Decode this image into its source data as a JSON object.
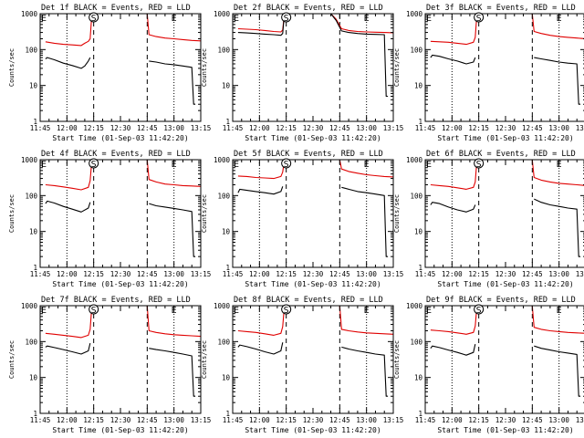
{
  "figure": {
    "xlabel": "Start Time (01-Sep-03 11:42:20)",
    "ylabel": "Counts/sec",
    "x_ticks": [
      "11:45",
      "12:00",
      "12:15",
      "12:30",
      "12:45",
      "13:00",
      "13:15"
    ],
    "y_ticks": [
      "1",
      "10",
      "100",
      "1000"
    ]
  },
  "chart_data": [
    {
      "type": "line",
      "title": "Det 1f BLACK = Events, RED = LLD",
      "xlabel": "Start Time (01-Sep-03 11:42:20)",
      "ylabel": "Counts/sec",
      "ylog": true,
      "ylim": [
        1,
        1000
      ],
      "x_ticks": [
        "11:45",
        "12:00",
        "12:15",
        "12:30",
        "12:45",
        "13:00",
        "13:15"
      ],
      "markers": [
        "E",
        "S",
        "E"
      ],
      "series": [
        {
          "color": "#e00000",
          "x": [
            "11:48",
            "11:53",
            "11:58",
            "12:03",
            "12:08",
            "12:10",
            "12:12",
            "12:13",
            "12:14",
            "12:45",
            "12:46",
            "12:50",
            "12:55",
            "13:00",
            "13:05",
            "13:10",
            "13:15"
          ],
          "y": [
            165,
            150,
            140,
            135,
            130,
            150,
            170,
            200,
            1000,
            1000,
            260,
            230,
            210,
            200,
            190,
            180,
            175
          ]
        },
        {
          "color": "#000000",
          "x": [
            "11:48",
            "11:49",
            "11:53",
            "11:58",
            "12:03",
            "12:08",
            "12:10",
            "12:12",
            "12:13",
            "12:14",
            "12:45",
            "12:46",
            "12:50",
            "12:55",
            "13:00",
            "13:05",
            "13:10",
            "13:11",
            "13:12"
          ],
          "y": [
            55,
            60,
            52,
            42,
            36,
            30,
            35,
            48,
            60,
            null,
            null,
            48,
            45,
            40,
            38,
            35,
            32,
            3,
            3
          ]
        }
      ]
    },
    {
      "type": "line",
      "title": "Det 2f BLACK = Events, RED = LLD",
      "xlabel": "Start Time (01-Sep-03 11:42:20)",
      "ylabel": "Counts/sec",
      "ylog": true,
      "ylim": [
        1,
        1000
      ],
      "x_ticks": [
        "11:45",
        "12:00",
        "12:15",
        "12:30",
        "12:45",
        "13:00",
        "13:15"
      ],
      "markers": [
        "E",
        "S",
        "E"
      ],
      "series": [
        {
          "color": "#e00000",
          "x": [
            "11:48",
            "11:53",
            "11:58",
            "12:03",
            "12:08",
            "12:12",
            "12:13",
            "12:14",
            "12:40",
            "12:43",
            "12:46",
            "12:50",
            "12:55",
            "13:00",
            "13:05",
            "13:10",
            "13:15"
          ],
          "y": [
            380,
            370,
            360,
            340,
            320,
            310,
            350,
            1000,
            1000,
            700,
            380,
            340,
            320,
            310,
            305,
            300,
            295
          ]
        },
        {
          "color": "#000000",
          "x": [
            "11:48",
            "11:53",
            "11:58",
            "12:03",
            "12:08",
            "12:12",
            "12:13",
            "12:14",
            "12:40",
            "12:43",
            "12:46",
            "12:50",
            "12:55",
            "13:00",
            "13:05",
            "13:10",
            "13:11",
            "13:12"
          ],
          "y": [
            300,
            290,
            280,
            270,
            260,
            250,
            280,
            1000,
            1000,
            650,
            330,
            300,
            280,
            270,
            265,
            260,
            5,
            5
          ]
        }
      ]
    },
    {
      "type": "line",
      "title": "Det 3f BLACK = Events, RED = LLD",
      "xlabel": "Start Time (01-Sep-03 11:42:20)",
      "ylabel": "Counts/sec",
      "ylog": true,
      "ylim": [
        1,
        1000
      ],
      "x_ticks": [
        "11:45",
        "12:00",
        "12:15",
        "12:30",
        "12:45",
        "13:00",
        "13:15"
      ],
      "markers": [
        "E",
        "S",
        "E"
      ],
      "series": [
        {
          "color": "#e00000",
          "x": [
            "11:48",
            "11:53",
            "11:58",
            "12:03",
            "12:08",
            "12:12",
            "12:13",
            "12:14",
            "12:45",
            "12:46",
            "12:50",
            "12:55",
            "13:00",
            "13:05",
            "13:10",
            "13:15"
          ],
          "y": [
            170,
            165,
            160,
            150,
            140,
            160,
            220,
            1000,
            1000,
            320,
            280,
            250,
            230,
            220,
            210,
            200
          ]
        },
        {
          "color": "#000000",
          "x": [
            "11:48",
            "11:49",
            "11:53",
            "11:58",
            "12:03",
            "12:08",
            "12:12",
            "12:13",
            "12:14",
            "12:45",
            "12:46",
            "12:50",
            "12:55",
            "13:00",
            "13:05",
            "13:10",
            "13:11",
            "13:12"
          ],
          "y": [
            60,
            70,
            65,
            55,
            48,
            40,
            45,
            60,
            null,
            null,
            60,
            55,
            50,
            45,
            42,
            40,
            3,
            3
          ]
        }
      ]
    },
    {
      "type": "line",
      "title": "Det 4f BLACK = Events, RED = LLD",
      "xlabel": "Start Time (01-Sep-03 11:42:20)",
      "ylabel": "Counts/sec",
      "ylog": true,
      "ylim": [
        1,
        1000
      ],
      "x_ticks": [
        "11:45",
        "12:00",
        "12:15",
        "12:30",
        "12:45",
        "13:00",
        "13:15"
      ],
      "markers": [
        "E",
        "S",
        "E"
      ],
      "series": [
        {
          "color": "#e00000",
          "x": [
            "11:48",
            "11:53",
            "11:58",
            "12:03",
            "12:08",
            "12:12",
            "12:13",
            "12:14",
            "12:45",
            "12:46",
            "12:50",
            "12:55",
            "13:00",
            "13:05",
            "13:10",
            "13:15"
          ],
          "y": [
            200,
            190,
            175,
            160,
            145,
            170,
            260,
            1000,
            1000,
            280,
            240,
            210,
            200,
            190,
            185,
            180
          ]
        },
        {
          "color": "#000000",
          "x": [
            "11:48",
            "11:49",
            "11:53",
            "11:58",
            "12:03",
            "12:08",
            "12:12",
            "12:13",
            "12:14",
            "12:45",
            "12:46",
            "12:50",
            "12:55",
            "13:00",
            "13:05",
            "13:10",
            "13:11",
            "13:12"
          ],
          "y": [
            60,
            70,
            62,
            50,
            42,
            35,
            45,
            65,
            null,
            null,
            60,
            52,
            48,
            44,
            40,
            36,
            2,
            2
          ]
        }
      ]
    },
    {
      "type": "line",
      "title": "Det 5f BLACK = Events, RED = LLD",
      "xlabel": "Start Time (01-Sep-03 11:42:20)",
      "ylabel": "Counts/sec",
      "ylog": true,
      "ylim": [
        1,
        1000
      ],
      "x_ticks": [
        "11:45",
        "12:00",
        "12:15",
        "12:30",
        "12:45",
        "13:00",
        "13:15"
      ],
      "markers": [
        "E",
        "S",
        "E"
      ],
      "series": [
        {
          "color": "#e00000",
          "x": [
            "11:48",
            "11:53",
            "11:58",
            "12:03",
            "12:08",
            "12:12",
            "12:13",
            "12:14",
            "12:45",
            "12:46",
            "12:50",
            "12:55",
            "13:00",
            "13:05",
            "13:10",
            "13:15"
          ],
          "y": [
            350,
            340,
            320,
            310,
            300,
            340,
            450,
            1000,
            1000,
            550,
            470,
            420,
            380,
            360,
            340,
            330
          ]
        },
        {
          "color": "#000000",
          "x": [
            "11:48",
            "11:49",
            "11:53",
            "11:58",
            "12:03",
            "12:08",
            "12:12",
            "12:13",
            "12:14",
            "12:45",
            "12:46",
            "12:50",
            "12:55",
            "13:00",
            "13:05",
            "13:10",
            "13:11",
            "13:12"
          ],
          "y": [
            120,
            150,
            140,
            130,
            120,
            110,
            130,
            180,
            null,
            null,
            170,
            150,
            130,
            120,
            110,
            100,
            2,
            2
          ]
        }
      ]
    },
    {
      "type": "line",
      "title": "Det 6f BLACK = Events, RED = LLD",
      "xlabel": "Start Time (01-Sep-03 11:42:20)",
      "ylabel": "Counts/sec",
      "ylog": true,
      "ylim": [
        1,
        1000
      ],
      "x_ticks": [
        "11:45",
        "12:00",
        "12:15",
        "12:30",
        "12:45",
        "13:00",
        "13:15"
      ],
      "markers": [
        "E",
        "S",
        "E"
      ],
      "series": [
        {
          "color": "#e00000",
          "x": [
            "11:48",
            "11:53",
            "11:58",
            "12:03",
            "12:08",
            "12:12",
            "12:13",
            "12:14",
            "12:45",
            "12:46",
            "12:50",
            "12:55",
            "13:00",
            "13:05",
            "13:10",
            "13:15"
          ],
          "y": [
            200,
            190,
            180,
            165,
            150,
            170,
            240,
            1000,
            1000,
            320,
            270,
            240,
            220,
            210,
            200,
            190
          ]
        },
        {
          "color": "#000000",
          "x": [
            "11:48",
            "11:49",
            "11:53",
            "11:58",
            "12:03",
            "12:08",
            "12:12",
            "12:13",
            "12:14",
            "12:45",
            "12:46",
            "12:50",
            "12:55",
            "13:00",
            "13:05",
            "13:10",
            "13:11",
            "13:12"
          ],
          "y": [
            55,
            65,
            60,
            48,
            40,
            35,
            42,
            55,
            null,
            null,
            80,
            65,
            55,
            50,
            45,
            42,
            2,
            2
          ]
        }
      ]
    },
    {
      "type": "line",
      "title": "Det 7f BLACK = Events, RED = LLD",
      "xlabel": "Start Time (01-Sep-03 11:42:20)",
      "ylabel": "Counts/sec",
      "ylog": true,
      "ylim": [
        1,
        1000
      ],
      "x_ticks": [
        "11:45",
        "12:00",
        "12:15",
        "12:30",
        "12:45",
        "13:00",
        "13:15"
      ],
      "markers": [
        "E",
        "S",
        "E"
      ],
      "series": [
        {
          "color": "#e00000",
          "x": [
            "11:48",
            "11:53",
            "11:58",
            "12:03",
            "12:08",
            "12:12",
            "12:13",
            "12:14",
            "12:45",
            "12:46",
            "12:50",
            "12:55",
            "13:00",
            "13:05",
            "13:10",
            "13:15"
          ],
          "y": [
            170,
            160,
            150,
            140,
            130,
            150,
            220,
            1000,
            1000,
            200,
            180,
            165,
            155,
            150,
            145,
            140
          ]
        },
        {
          "color": "#000000",
          "x": [
            "11:48",
            "11:49",
            "11:53",
            "11:58",
            "12:03",
            "12:08",
            "12:12",
            "12:13",
            "12:14",
            "12:45",
            "12:46",
            "12:50",
            "12:55",
            "13:00",
            "13:05",
            "13:10",
            "13:11",
            "13:12"
          ],
          "y": [
            70,
            75,
            68,
            60,
            52,
            45,
            55,
            90,
            null,
            null,
            65,
            60,
            55,
            50,
            45,
            40,
            3,
            3
          ]
        }
      ]
    },
    {
      "type": "line",
      "title": "Det 8f BLACK = Events, RED = LLD",
      "xlabel": "Start Time (01-Sep-03 11:42:20)",
      "ylabel": "Counts/sec",
      "ylog": true,
      "ylim": [
        1,
        1000
      ],
      "x_ticks": [
        "11:45",
        "12:00",
        "12:15",
        "12:30",
        "12:45",
        "13:00",
        "13:15"
      ],
      "markers": [
        "E",
        "S",
        "E"
      ],
      "series": [
        {
          "color": "#e00000",
          "x": [
            "11:48",
            "11:53",
            "11:58",
            "12:03",
            "12:08",
            "12:12",
            "12:13",
            "12:14",
            "12:45",
            "12:46",
            "12:50",
            "12:55",
            "13:00",
            "13:05",
            "13:10",
            "13:15"
          ],
          "y": [
            200,
            190,
            180,
            165,
            150,
            170,
            260,
            1000,
            1000,
            220,
            200,
            185,
            175,
            170,
            165,
            160
          ]
        },
        {
          "color": "#000000",
          "x": [
            "11:48",
            "11:49",
            "11:53",
            "11:58",
            "12:03",
            "12:08",
            "12:12",
            "12:13",
            "12:14",
            "12:45",
            "12:46",
            "12:50",
            "12:55",
            "13:00",
            "13:05",
            "13:10",
            "13:11",
            "13:12"
          ],
          "y": [
            70,
            80,
            72,
            62,
            52,
            45,
            55,
            95,
            null,
            null,
            70,
            62,
            55,
            50,
            45,
            42,
            3,
            3
          ]
        }
      ]
    },
    {
      "type": "line",
      "title": "Det 9f BLACK = Events, RED = LLD",
      "xlabel": "Start Time (01-Sep-03 11:42:20)",
      "ylabel": "Counts/sec",
      "ylog": true,
      "ylim": [
        1,
        1000
      ],
      "x_ticks": [
        "11:45",
        "12:00",
        "12:15",
        "12:30",
        "12:45",
        "13:00",
        "13:15"
      ],
      "markers": [
        "E",
        "S",
        "E"
      ],
      "series": [
        {
          "color": "#e00000",
          "x": [
            "11:48",
            "11:53",
            "11:58",
            "12:03",
            "12:08",
            "12:12",
            "12:13",
            "12:14",
            "12:45",
            "12:46",
            "12:50",
            "12:55",
            "13:00",
            "13:05",
            "13:10",
            "13:15"
          ],
          "y": [
            210,
            200,
            190,
            175,
            160,
            180,
            270,
            1000,
            1000,
            250,
            220,
            200,
            190,
            180,
            175,
            170
          ]
        },
        {
          "color": "#000000",
          "x": [
            "11:48",
            "11:49",
            "11:53",
            "11:58",
            "12:03",
            "12:08",
            "12:12",
            "12:13",
            "12:14",
            "12:45",
            "12:46",
            "12:50",
            "12:55",
            "13:00",
            "13:05",
            "13:10",
            "13:11",
            "13:12"
          ],
          "y": [
            65,
            75,
            68,
            58,
            50,
            42,
            50,
            85,
            null,
            null,
            75,
            65,
            58,
            52,
            48,
            44,
            3,
            3
          ]
        }
      ]
    }
  ]
}
